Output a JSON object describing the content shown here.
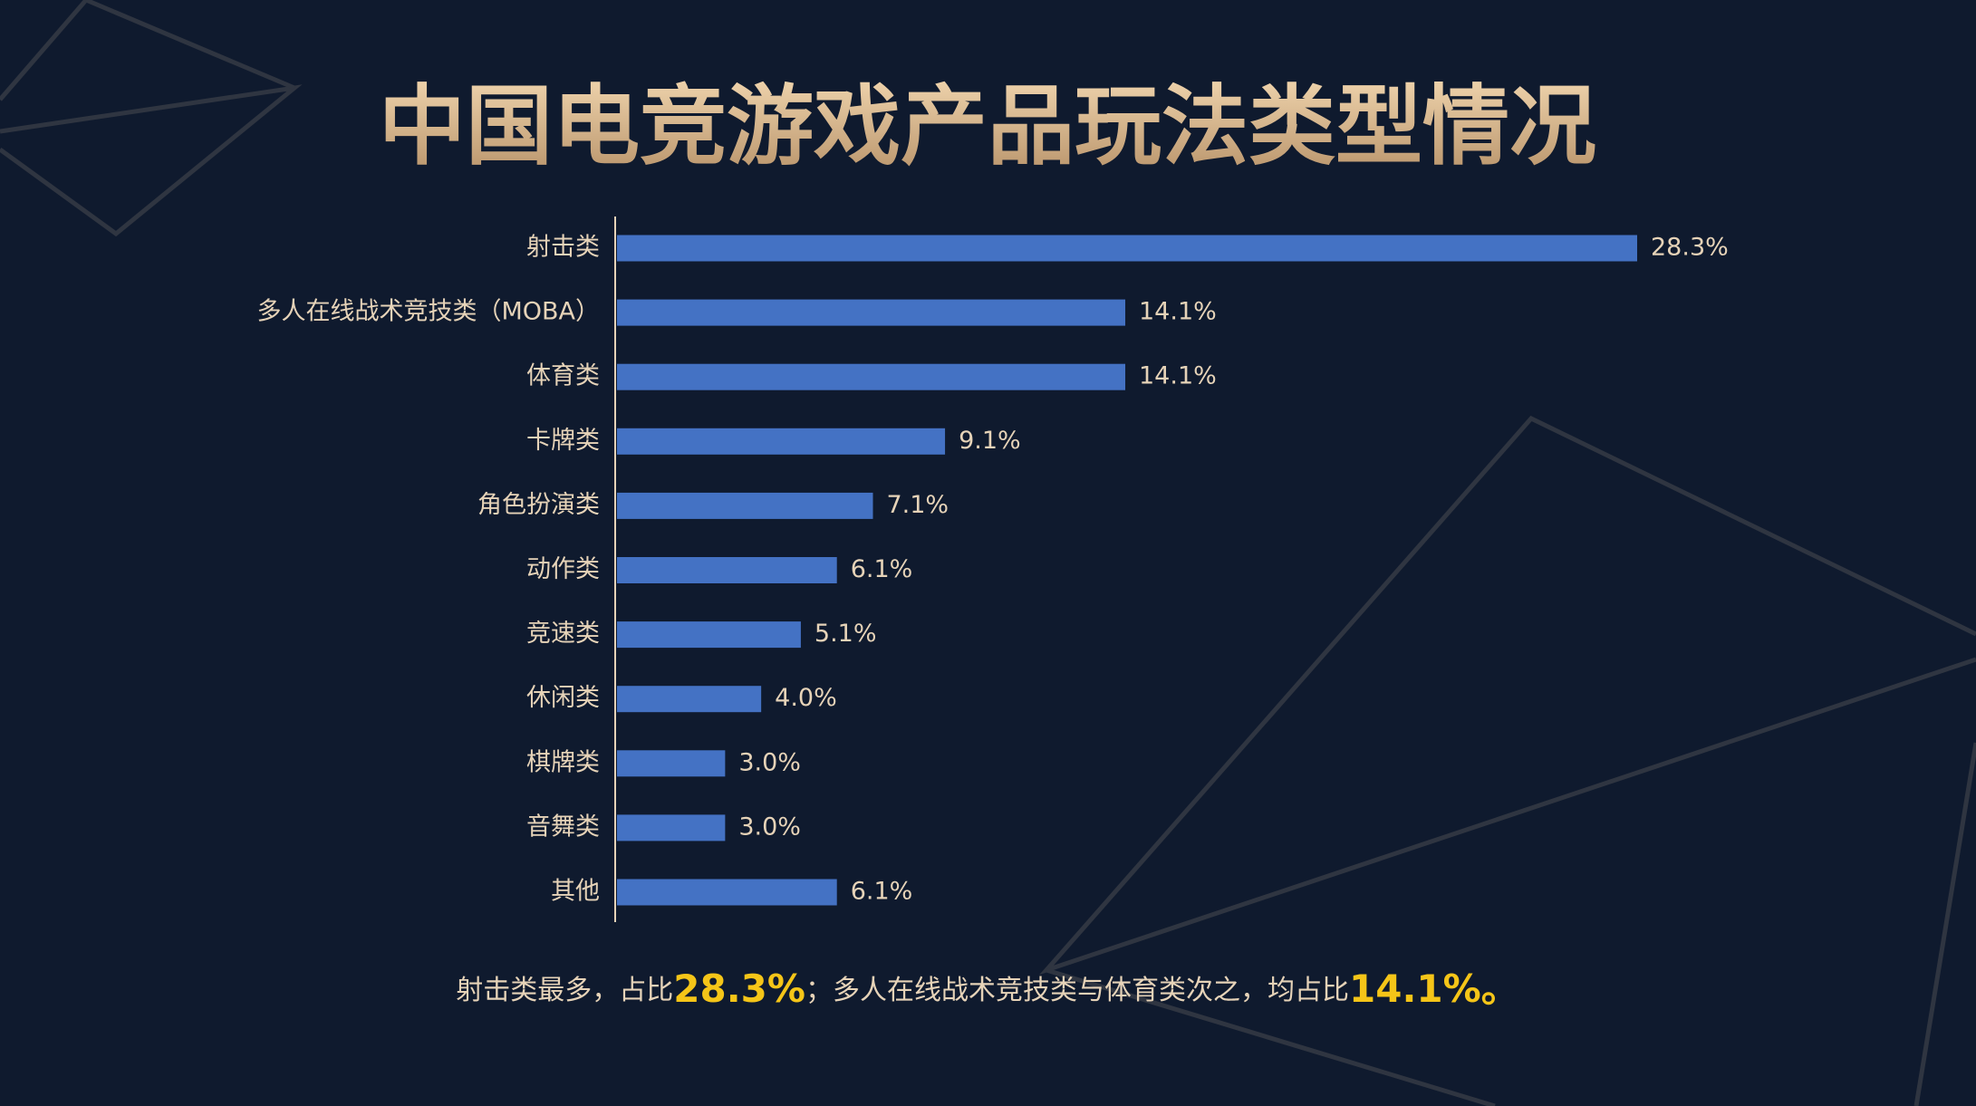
{
  "chart_data": {
    "type": "bar",
    "orientation": "horizontal",
    "title": "中国电竞游戏产品玩法类型情况",
    "categories": [
      "射击类",
      "多人在线战术竞技类（MOBA）",
      "体育类",
      "卡牌类",
      "角色扮演类",
      "动作类",
      "竞速类",
      "休闲类",
      "棋牌类",
      "音舞类",
      "其他"
    ],
    "values": [
      28.3,
      14.1,
      14.1,
      9.1,
      7.1,
      6.1,
      5.1,
      4.0,
      3.0,
      3.0,
      6.1
    ],
    "value_labels": [
      "28.3%",
      "14.1%",
      "14.1%",
      "9.1%",
      "7.1%",
      "6.1%",
      "5.1%",
      "4.0%",
      "3.0%",
      "3.0%",
      "6.1%"
    ],
    "color": "#4472c4",
    "note": [
      "射击类最多，占比",
      "28.3%",
      "；多人在线战术竞技类与体育类次之，均占比",
      "14.1%。"
    ]
  }
}
